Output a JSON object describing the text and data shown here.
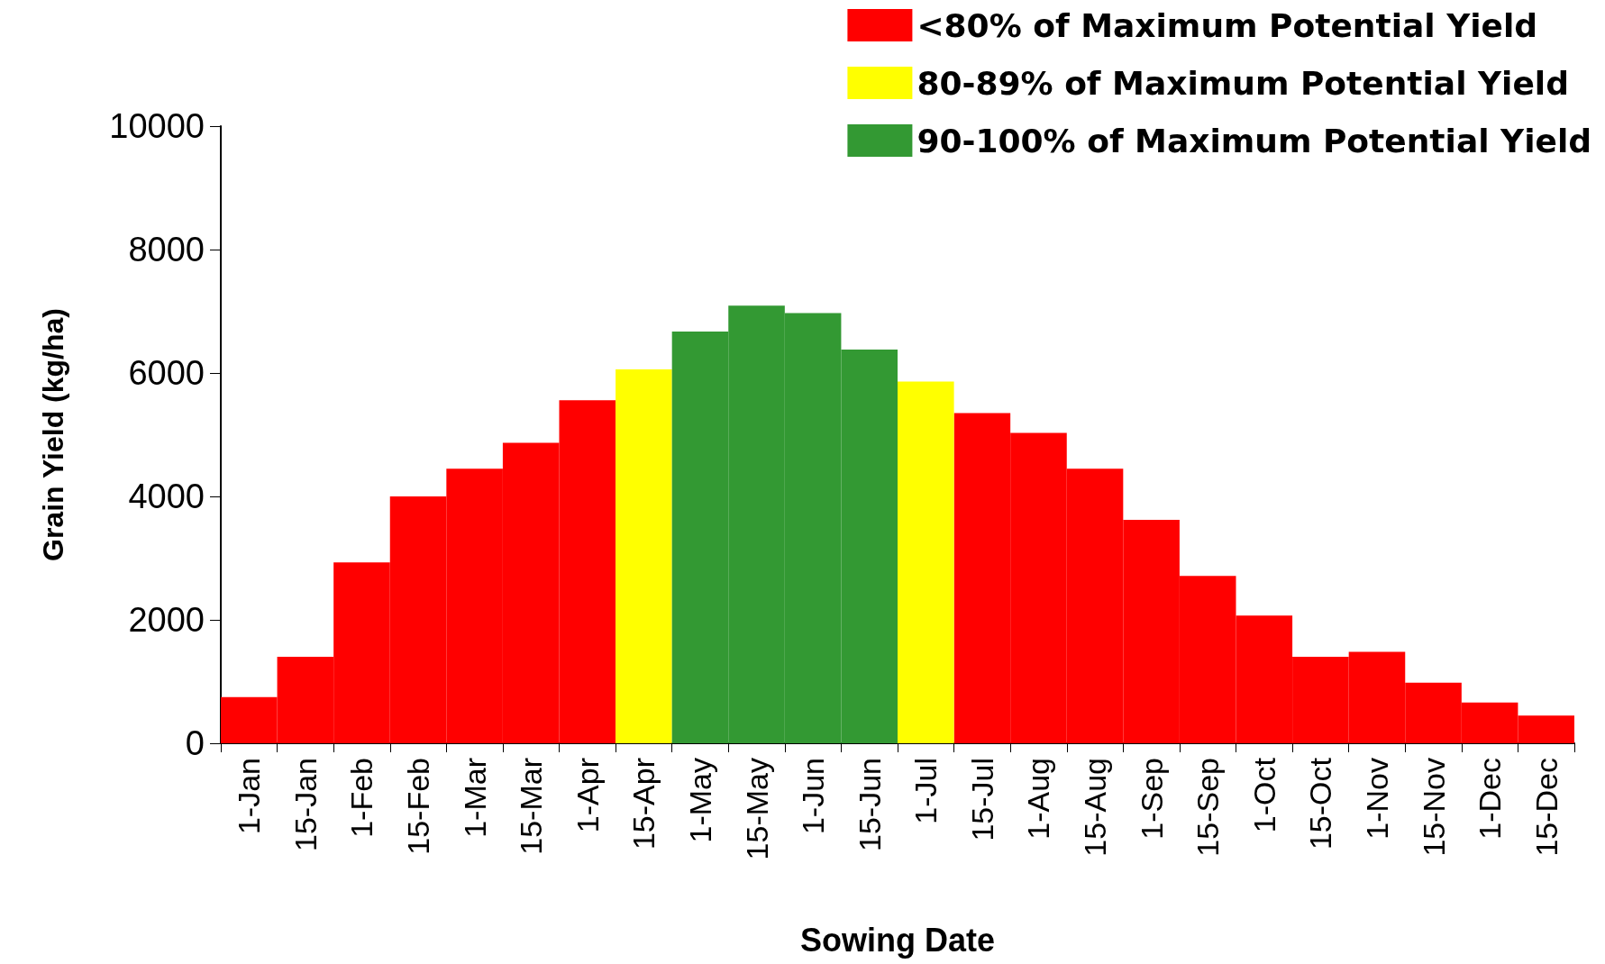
{
  "chart_data": {
    "type": "bar",
    "xlabel": "Sowing Date",
    "ylabel": "Grain Yield (kg/ha)",
    "categories": [
      "1-Jan",
      "15-Jan",
      "1-Feb",
      "15-Feb",
      "1-Mar",
      "15-Mar",
      "1-Apr",
      "15-Apr",
      "1-May",
      "15-May",
      "1-Jun",
      "15-Jun",
      "1-Jul",
      "15-Jul",
      "1-Aug",
      "15-Aug",
      "1-Sep",
      "15-Sep",
      "1-Oct",
      "15-Oct",
      "1-Nov",
      "15-Nov",
      "1-Dec",
      "15-Dec"
    ],
    "series": [
      {
        "name": "<80% of Maximum Potential Yield",
        "color": "#ff0000",
        "values": [
          750,
          1400,
          2930,
          4000,
          4450,
          4870,
          5560,
          null,
          null,
          null,
          null,
          null,
          null,
          5350,
          5030,
          4450,
          3620,
          2710,
          2070,
          1400,
          1480,
          980,
          660,
          450
        ]
      },
      {
        "name": "80-89% of Maximum Potential Yield",
        "color": "#ffff00",
        "values": [
          null,
          null,
          null,
          null,
          null,
          null,
          null,
          6060,
          null,
          null,
          null,
          null,
          5860,
          null,
          null,
          null,
          null,
          null,
          null,
          null,
          null,
          null,
          null,
          null
        ]
      },
      {
        "name": "90-100% of Maximum Potential Yield",
        "color": "#339933",
        "values": [
          null,
          null,
          null,
          null,
          null,
          null,
          null,
          null,
          6670,
          7090,
          6970,
          6380,
          null,
          null,
          null,
          null,
          null,
          null,
          null,
          null,
          null,
          null,
          null,
          null
        ]
      }
    ],
    "ylim": [
      0,
      10000
    ],
    "yticks": [
      0,
      2000,
      4000,
      6000,
      8000,
      10000
    ],
    "grid": false,
    "legend": "top right"
  }
}
